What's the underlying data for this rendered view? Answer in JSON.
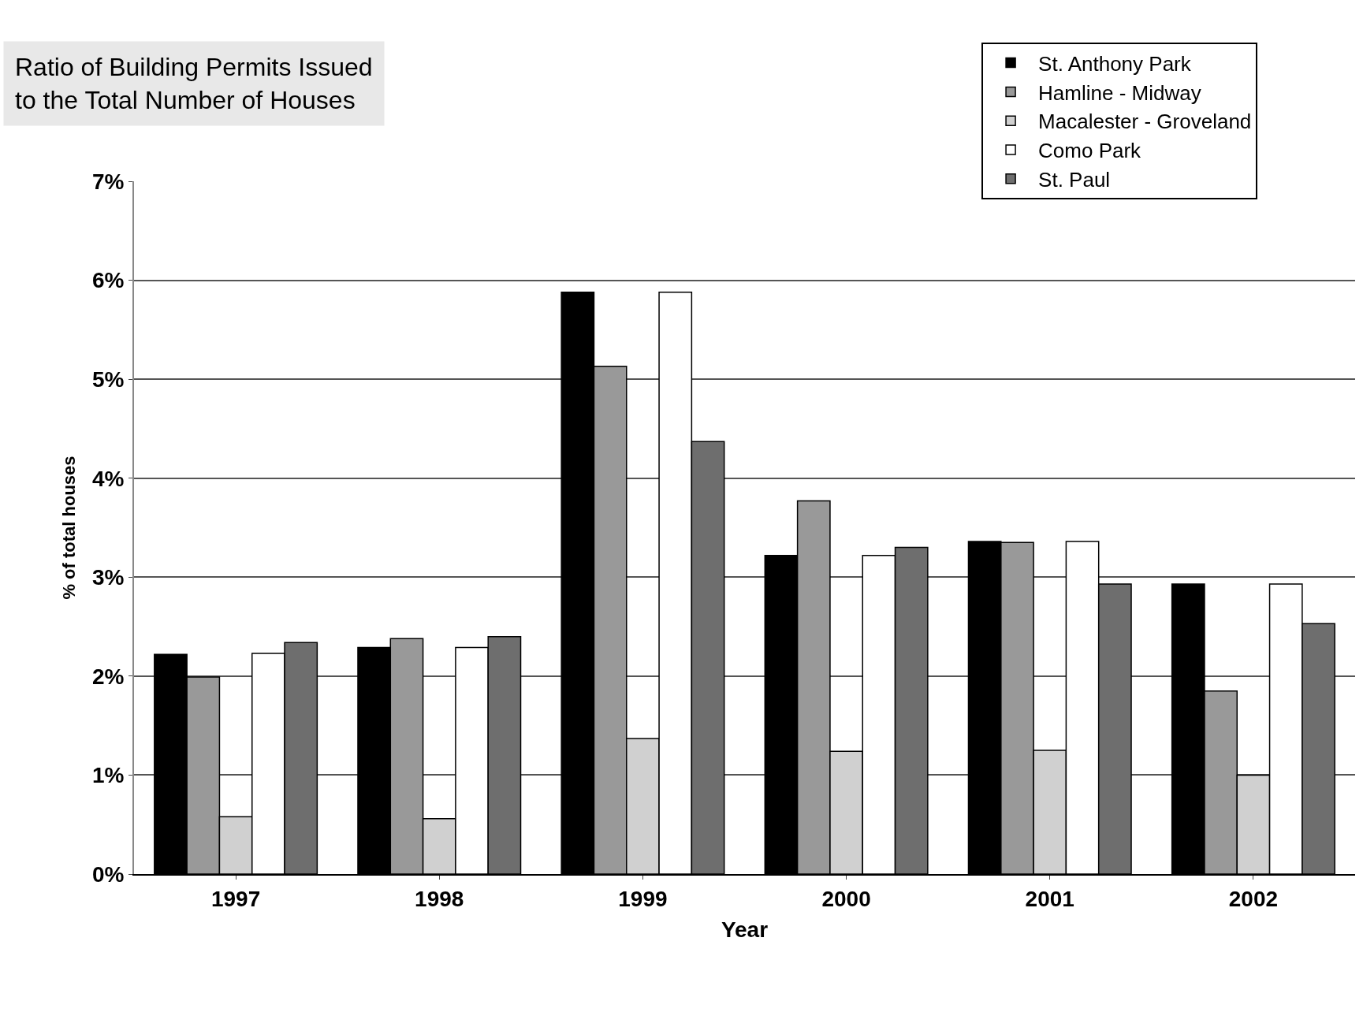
{
  "chart_data": {
    "type": "bar",
    "title": "Ratio of Building Permits Issued\nto the Total Number of Houses",
    "xlabel": "Year",
    "ylabel": "% of total houses",
    "categories": [
      "1997",
      "1998",
      "1999",
      "2000",
      "2001",
      "2002"
    ],
    "series": [
      {
        "name": "St. Anthony Park",
        "color": "#000000",
        "values": [
          2.22,
          2.29,
          5.88,
          3.22,
          3.36,
          2.93
        ]
      },
      {
        "name": "Hamline - Midway",
        "color": "#999999",
        "values": [
          1.99,
          2.38,
          5.13,
          3.77,
          3.35,
          1.85
        ]
      },
      {
        "name": "Macalester - Groveland",
        "color": "#d0d0d0",
        "values": [
          0.58,
          0.56,
          1.37,
          1.24,
          1.25,
          1.0
        ]
      },
      {
        "name": "Como Park",
        "color": "#ffffff",
        "values": [
          2.23,
          2.29,
          5.88,
          3.22,
          3.36,
          2.93
        ]
      },
      {
        "name": "St. Paul",
        "color": "#6e6e6e",
        "values": [
          2.34,
          2.4,
          4.37,
          3.3,
          2.93,
          2.53
        ]
      }
    ],
    "ylim": [
      0,
      7
    ],
    "yticks": [
      {
        "value": 0,
        "label": "0%"
      },
      {
        "value": 1,
        "label": "1%"
      },
      {
        "value": 2,
        "label": "2%"
      },
      {
        "value": 3,
        "label": "3%"
      },
      {
        "value": 4,
        "label": "4%"
      },
      {
        "value": 5,
        "label": "5%"
      },
      {
        "value": 6,
        "label": "6%"
      },
      {
        "value": 7,
        "label": "7%"
      }
    ],
    "grid": "y",
    "legend": "top right"
  }
}
